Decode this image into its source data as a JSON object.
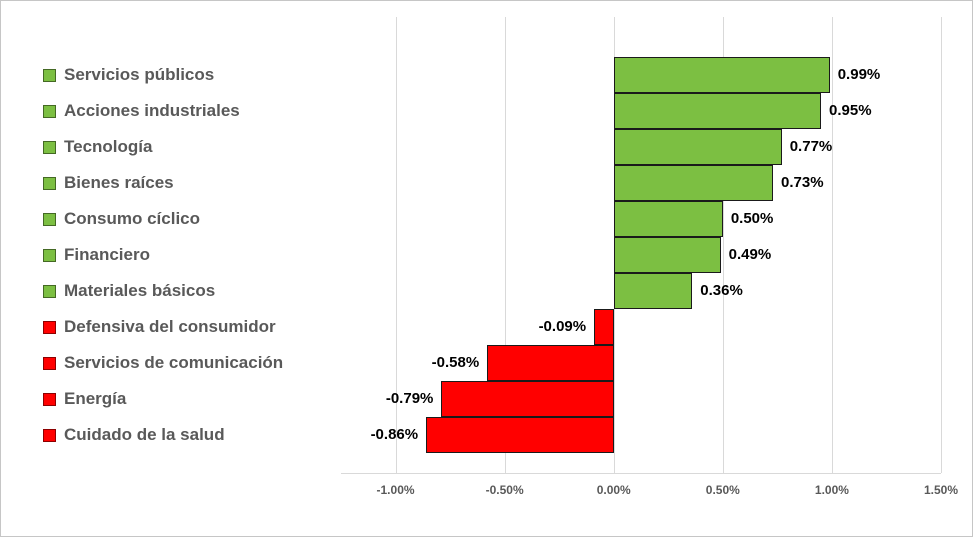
{
  "chart_data": {
    "type": "bar",
    "orientation": "horizontal",
    "title": "",
    "xlabel": "",
    "ylabel": "",
    "grid": true,
    "categories": [
      "Servicios públicos",
      "Acciones industriales",
      "Tecnología",
      "Bienes raíces",
      "Consumo cíclico",
      "Financiero",
      "Materiales básicos",
      "Defensiva del consumidor",
      "Servicios de comunicación",
      "Energía",
      "Cuidado de la salud"
    ],
    "values": [
      0.99,
      0.95,
      0.77,
      0.73,
      0.5,
      0.49,
      0.36,
      -0.09,
      -0.58,
      -0.79,
      -0.86
    ],
    "value_labels": [
      "0.99%",
      "0.95%",
      "0.77%",
      "0.73%",
      "0.50%",
      "0.49%",
      "0.36%",
      "-0.09%",
      "-0.58%",
      "-0.79%",
      "-0.86%"
    ],
    "axis": {
      "min": -1.25,
      "max": 1.5,
      "ticks": [
        -1.0,
        -0.5,
        0.0,
        0.5,
        1.0,
        1.5
      ],
      "tick_labels": [
        "-1.00%",
        "-0.50%",
        "0.00%",
        "0.50%",
        "1.00%",
        "1.50%"
      ]
    },
    "colors": {
      "positive": "#7CBF42",
      "negative": "#FF0000",
      "bar_border": "#1a1a1a",
      "gridline": "#d9d9d9",
      "label_text": "#595959",
      "value_text": "#000000"
    }
  }
}
